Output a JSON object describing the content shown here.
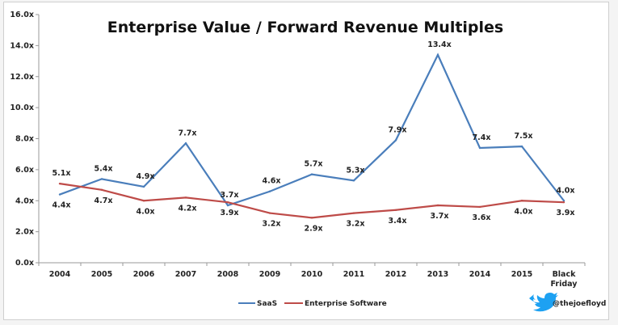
{
  "chart_data": {
    "type": "line",
    "title": "Enterprise Value / Forward Revenue Multiples",
    "categories": [
      "2004",
      "2005",
      "2006",
      "2007",
      "2008",
      "2009",
      "2010",
      "2011",
      "2012",
      "2013",
      "2014",
      "2015",
      "Black Friday"
    ],
    "series": [
      {
        "name": "SaaS",
        "color": "#4a7ebb",
        "values": [
          4.4,
          5.4,
          4.9,
          7.7,
          3.7,
          4.6,
          5.7,
          5.3,
          7.9,
          13.4,
          7.4,
          7.5,
          4.0
        ]
      },
      {
        "name": "Enterprise Software",
        "color": "#be4b48",
        "values": [
          5.1,
          4.7,
          4.0,
          4.2,
          3.9,
          3.2,
          2.9,
          3.2,
          3.4,
          3.7,
          3.6,
          4.0,
          3.9
        ]
      }
    ],
    "ylim": [
      0,
      16
    ],
    "yticks": [
      "0.0x",
      "2.0x",
      "4.0x",
      "6.0x",
      "8.0x",
      "10.0x",
      "12.0x",
      "14.0x",
      "16.0x"
    ],
    "value_suffix": "x",
    "grid": false,
    "legend": "bottom",
    "credit": {
      "icon": "twitter-bird-icon",
      "handle": "@thejoefloyd",
      "color": "#1da1f2"
    }
  }
}
